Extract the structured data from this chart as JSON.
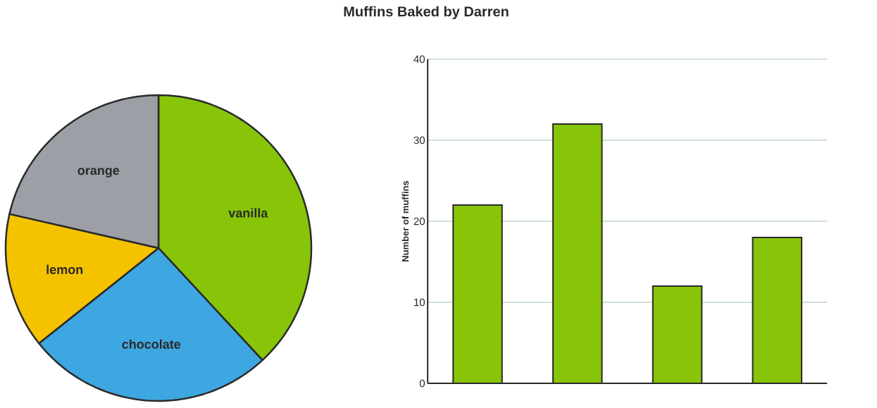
{
  "chart_data": [
    {
      "type": "pie",
      "title": "Muffins Baked by Darren",
      "categories": [
        "vanilla",
        "chocolate",
        "lemon",
        "orange"
      ],
      "values": [
        38.1,
        26.19,
        14.29,
        21.42
      ],
      "colors": [
        "#88c508",
        "#3ea6e0",
        "#f5c200",
        "#9ca0a6"
      ]
    },
    {
      "type": "bar",
      "categories": [
        null,
        null,
        null,
        null
      ],
      "values": [
        22,
        32,
        12,
        18
      ],
      "color": "#88c508",
      "ylim": [
        0,
        40
      ],
      "yticks": [
        0,
        10,
        20,
        30,
        40
      ],
      "ylabel": "Number of muffins",
      "grid": "y"
    }
  ]
}
